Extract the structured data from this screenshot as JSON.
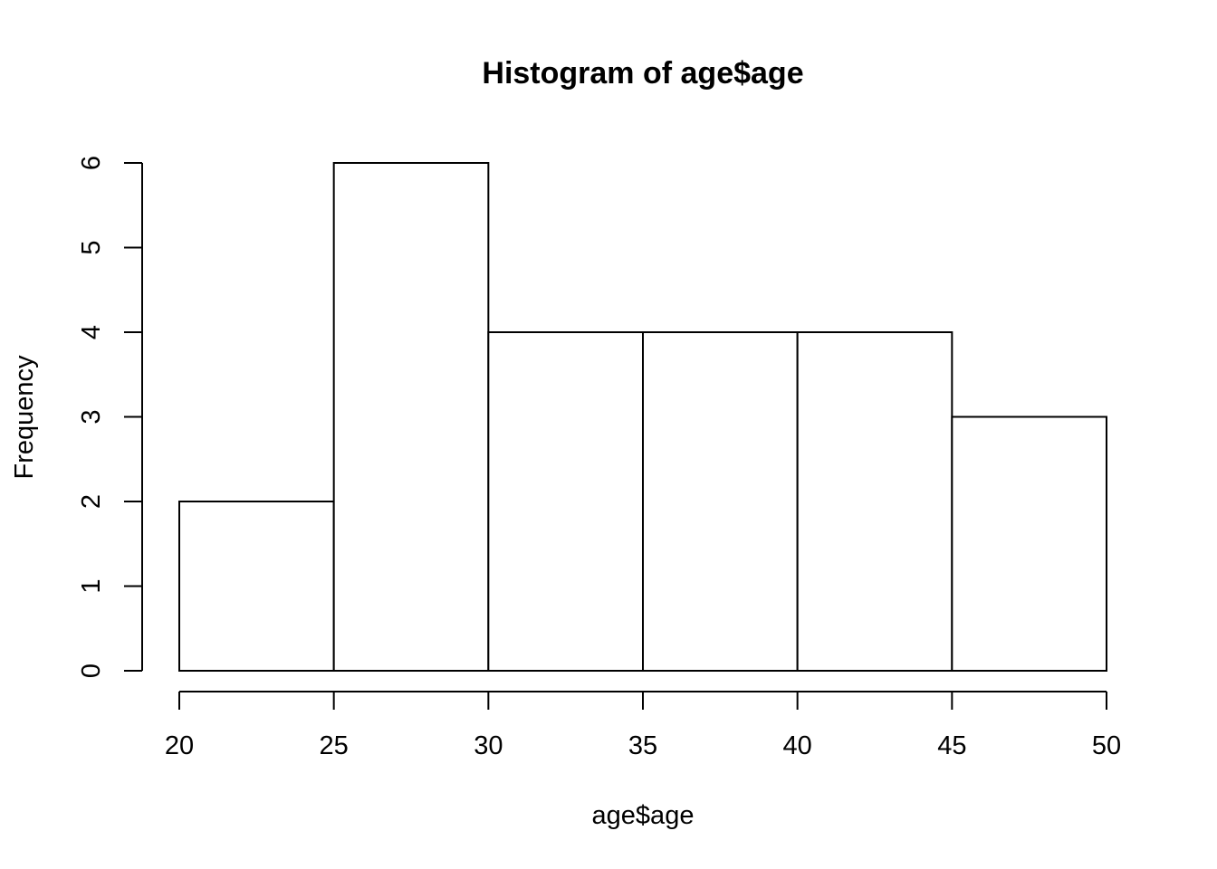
{
  "chart_data": {
    "type": "bar",
    "title": "Histogram of age$age",
    "xlabel": "age$age",
    "ylabel": "Frequency",
    "bins": [
      {
        "start": 20,
        "end": 25,
        "count": 2
      },
      {
        "start": 25,
        "end": 30,
        "count": 6
      },
      {
        "start": 30,
        "end": 35,
        "count": 4
      },
      {
        "start": 35,
        "end": 40,
        "count": 4
      },
      {
        "start": 40,
        "end": 45,
        "count": 4
      },
      {
        "start": 45,
        "end": 50,
        "count": 3
      }
    ],
    "x_ticks": [
      "20",
      "25",
      "30",
      "35",
      "40",
      "45",
      "50"
    ],
    "y_ticks": [
      "0",
      "1",
      "2",
      "3",
      "4",
      "5",
      "6"
    ],
    "xlim": [
      20,
      50
    ],
    "ylim": [
      0,
      6
    ],
    "grid": false,
    "legend": "none",
    "bar_fill": "#ffffff",
    "bar_stroke": "#000000"
  }
}
